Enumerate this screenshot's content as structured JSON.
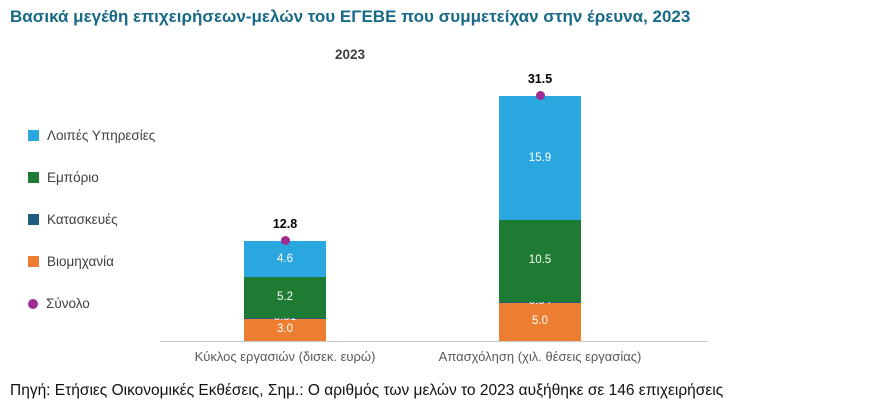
{
  "title": "Βασικά μεγέθη επιχειρήσεων-μελών του ΕΓΕΒΕ που συμμετείχαν στην έρευνα, 2023",
  "footer": {
    "note": "Πηγή: Ετήσιες Οικονομικές Εκθέσεις, Σημ.: Ο αριθμός των μελών το 2023 αυξήθηκε σε 146 επιχειρήσεις"
  },
  "legend": {
    "items": [
      {
        "label": "Λοιπές Υπηρεσίες",
        "color": "#2aa7de",
        "shape": "square"
      },
      {
        "label": "Εμπόριο",
        "color": "#1e7b33",
        "shape": "square"
      },
      {
        "label": "Κατασκευές",
        "color": "#1f5c80",
        "shape": "square"
      },
      {
        "label": "Βιομηχανία",
        "color": "#ed7d31",
        "shape": "square"
      },
      {
        "label": "Σύνολο",
        "color": "#a02b93",
        "shape": "circle"
      }
    ]
  },
  "chart_data": {
    "type": "bar",
    "stacked": true,
    "title": "2023",
    "legend_position": "left",
    "y_axis_visible": false,
    "categories": [
      "Κύκλος εργασιών (δισεκ. ευρώ)",
      "Απασχόληση (χιλ. θέσεις εργασίας)"
    ],
    "series": [
      {
        "name": "Βιομηχανία",
        "color": "#ed7d31",
        "values": [
          3.0,
          5.0
        ],
        "labels": [
          "3.0",
          "5.0"
        ]
      },
      {
        "name": "Κατασκευές",
        "color": "#1f5c80",
        "values": [
          0.01,
          0.04
        ],
        "labels": [
          "0.01",
          "0.04"
        ]
      },
      {
        "name": "Εμπόριο",
        "color": "#1e7b33",
        "values": [
          5.2,
          10.5
        ],
        "labels": [
          "5.2",
          "10.5"
        ]
      },
      {
        "name": "Λοιπές Υπηρεσίες",
        "color": "#2aa7de",
        "values": [
          4.6,
          15.9
        ],
        "labels": [
          "4.6",
          "15.9"
        ]
      }
    ],
    "totals": {
      "name": "Σύνολο",
      "marker": "dot",
      "color": "#a02b93",
      "values": [
        12.8,
        31.5
      ],
      "labels": [
        "12.8",
        "31.5"
      ]
    }
  }
}
